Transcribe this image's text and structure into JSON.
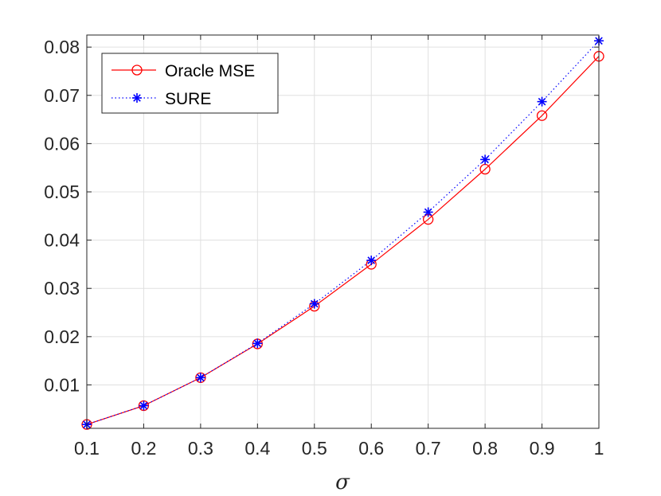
{
  "chart_data": {
    "type": "line",
    "title": "",
    "xlabel": "σ",
    "ylabel": "",
    "xlim": [
      0.1,
      1
    ],
    "ylim": [
      0.001,
      0.0825
    ],
    "grid": true,
    "legend_position": "top-left",
    "x": [
      0.1,
      0.2,
      0.3,
      0.4,
      0.5,
      0.6,
      0.7,
      0.8,
      0.9,
      1.0
    ],
    "x_tick_labels": [
      "0.1",
      "0.2",
      "0.3",
      "0.4",
      "0.5",
      "0.6",
      "0.7",
      "0.8",
      "0.9",
      "1"
    ],
    "y_ticks": [
      0.01,
      0.02,
      0.03,
      0.04,
      0.05,
      0.06,
      0.07,
      0.08
    ],
    "y_tick_labels": [
      "0.01",
      "0.02",
      "0.03",
      "0.04",
      "0.05",
      "0.06",
      "0.07",
      "0.08"
    ],
    "series": [
      {
        "name": "Oracle MSE",
        "color": "#ff0000",
        "line_style": "solid",
        "marker": "circle",
        "values": [
          0.0018,
          0.0057,
          0.0115,
          0.0185,
          0.0263,
          0.035,
          0.0443,
          0.0547,
          0.0658,
          0.0781
        ]
      },
      {
        "name": "SURE",
        "color": "#0000ff",
        "line_style": "dotted",
        "marker": "asterisk",
        "values": [
          0.0018,
          0.0057,
          0.0115,
          0.0186,
          0.0268,
          0.0358,
          0.0458,
          0.0567,
          0.0687,
          0.0813
        ]
      }
    ]
  }
}
